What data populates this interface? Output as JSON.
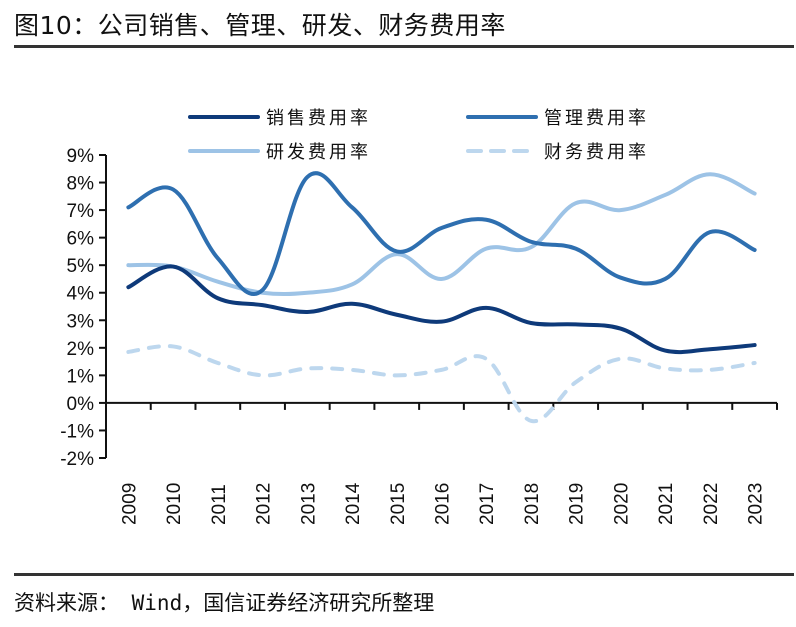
{
  "header": {
    "title": "图10：公司销售、管理、研发、财务费用率"
  },
  "footer": {
    "source": "资料来源： Wind，国信证券经济研究所整理"
  },
  "chart_data": {
    "type": "line",
    "title": "图10：公司销售、管理、研发、财务费用率",
    "xlabel": "",
    "ylabel": "",
    "x": [
      "2009",
      "2010",
      "2011",
      "2012",
      "2013",
      "2014",
      "2015",
      "2016",
      "2017",
      "2018",
      "2019",
      "2020",
      "2021",
      "2022",
      "2023"
    ],
    "ylim": [
      -2,
      9
    ],
    "yticks": [
      9,
      8,
      7,
      6,
      5,
      4,
      3,
      2,
      1,
      0,
      -1,
      -2
    ],
    "ytick_labels": [
      "9%",
      "8%",
      "7%",
      "6%",
      "5%",
      "4%",
      "3%",
      "2%",
      "1%",
      "0%",
      "-1%",
      "-2%"
    ],
    "y_unit": "%",
    "grid": false,
    "smooth": true,
    "legend_position": "top",
    "series": [
      {
        "name": "销售费用率",
        "color": "#0e3a7a",
        "dashed": false,
        "values": [
          4.2,
          4.95,
          3.8,
          3.55,
          3.3,
          3.6,
          3.2,
          2.95,
          3.45,
          2.9,
          2.85,
          2.7,
          1.9,
          1.95,
          2.1
        ]
      },
      {
        "name": "管理费用率",
        "color": "#2e6fb0",
        "dashed": false,
        "values": [
          7.1,
          7.75,
          5.25,
          4.1,
          8.2,
          7.1,
          5.5,
          6.35,
          6.65,
          5.85,
          5.6,
          4.55,
          4.5,
          6.2,
          5.55
        ]
      },
      {
        "name": "研发费用率",
        "color": "#9dc3e6",
        "dashed": false,
        "values": [
          5.0,
          4.95,
          4.4,
          4.0,
          4.0,
          4.3,
          5.4,
          4.5,
          5.6,
          5.65,
          7.25,
          7.0,
          7.55,
          8.3,
          7.6
        ]
      },
      {
        "name": "财务费用率",
        "color": "#bdd7ee",
        "dashed": true,
        "values": [
          1.85,
          2.05,
          1.45,
          1.0,
          1.25,
          1.2,
          1.0,
          1.2,
          1.6,
          -0.65,
          0.75,
          1.6,
          1.25,
          1.2,
          1.45
        ]
      }
    ]
  }
}
